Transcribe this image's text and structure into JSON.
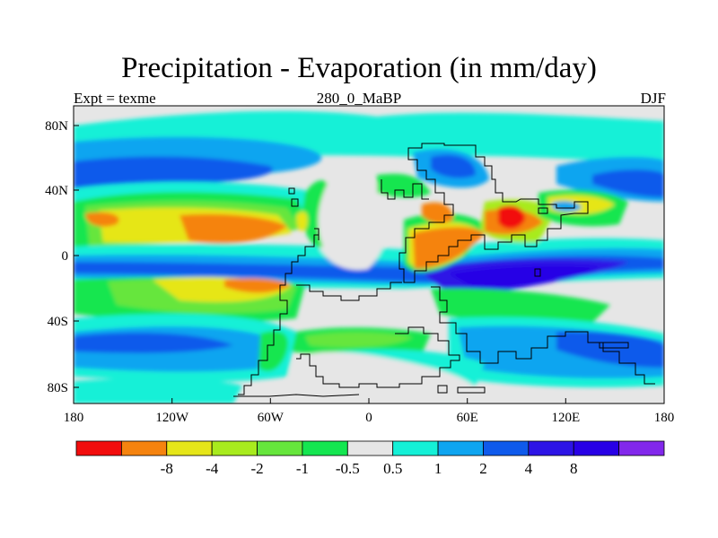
{
  "title": "Precipitation - Evaporation (in mm/day)",
  "subtitle_left": "Expt = texme",
  "subtitle_center": "280_0_MaBP",
  "subtitle_right": "DJF",
  "axes": {
    "x_ticks": [
      "180",
      "120W",
      "60W",
      "0",
      "60E",
      "120E",
      "180"
    ],
    "y_ticks": [
      "80N",
      "40N",
      "0",
      "40S",
      "80S"
    ]
  },
  "colorbar": {
    "colors": [
      "#f20d0d",
      "#f5830f",
      "#e6e619",
      "#a8eb1e",
      "#66e63c",
      "#14e650",
      "#e6e6e6",
      "#14f0d7",
      "#0fa5f0",
      "#0f5aeb",
      "#2d14e6",
      "#2800e6",
      "#8228eb"
    ],
    "labels": [
      "-8",
      "-4",
      "-2",
      "-1",
      "-0.5",
      "0.5",
      "1",
      "2",
      "4",
      "8"
    ]
  },
  "colors": {
    "background": "#e6e6e6",
    "coastline": "#000000"
  }
}
